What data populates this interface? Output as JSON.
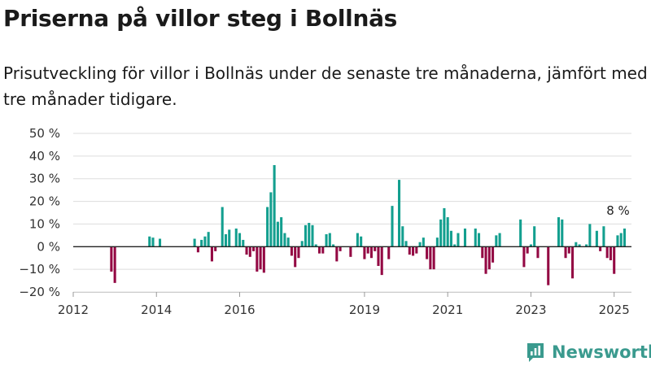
{
  "title": "Priserna på villor steg i Bollnäs",
  "subtitle": "Prisutveckling för villor i Bollnäs under de senaste tre månaderna, jämfört med tre månader tidigare.",
  "brand": {
    "name": "Newsworthy",
    "color": "#3a9a8e",
    "icon": "bar-chart-logo-icon"
  },
  "colors": {
    "positive": "#139f8f",
    "negative": "#930843",
    "zero_line": "#222222",
    "grid": "#dddddd"
  },
  "chart_data": {
    "type": "bar",
    "ylim": [
      -20,
      50
    ],
    "yticks": [
      50,
      40,
      30,
      20,
      10,
      0,
      -10,
      -20
    ],
    "ytick_labels": [
      "50 %",
      "40 %",
      "30 %",
      "20 %",
      "10 %",
      "0 %",
      "−10 %",
      "−20 %"
    ],
    "xlim": [
      "2012-01",
      "2025-06"
    ],
    "xticks": [
      "2012-01",
      "2014-01",
      "2016-01",
      "2019-01",
      "2021-01",
      "2023-01",
      "2025-01"
    ],
    "xtick_labels": [
      "2012",
      "2014",
      "2016",
      "2019",
      "2021",
      "2023",
      "2025"
    ],
    "grid": true,
    "legend": "none",
    "last_value_label": "8 %",
    "series": [
      {
        "points": [
          {
            "x": "2012-12",
            "y": -11
          },
          {
            "x": "2013-01",
            "y": -16
          },
          {
            "x": "2013-11",
            "y": 4.5
          },
          {
            "x": "2013-12",
            "y": 4
          },
          {
            "x": "2014-02",
            "y": 3.5
          },
          {
            "x": "2014-12",
            "y": 3.5
          },
          {
            "x": "2015-01",
            "y": -2.5
          },
          {
            "x": "2015-02",
            "y": 3
          },
          {
            "x": "2015-03",
            "y": 4.5
          },
          {
            "x": "2015-04",
            "y": 6.5
          },
          {
            "x": "2015-05",
            "y": -6.5
          },
          {
            "x": "2015-06",
            "y": -2
          },
          {
            "x": "2015-08",
            "y": 17.5
          },
          {
            "x": "2015-09",
            "y": 5.5
          },
          {
            "x": "2015-10",
            "y": 7.5
          },
          {
            "x": "2015-12",
            "y": 8
          },
          {
            "x": "2016-01",
            "y": 6
          },
          {
            "x": "2016-02",
            "y": 3
          },
          {
            "x": "2016-03",
            "y": -3.5
          },
          {
            "x": "2016-04",
            "y": -4.5
          },
          {
            "x": "2016-05",
            "y": -2
          },
          {
            "x": "2016-06",
            "y": -11
          },
          {
            "x": "2016-07",
            "y": -10
          },
          {
            "x": "2016-08",
            "y": -11.5
          },
          {
            "x": "2016-09",
            "y": 17.5
          },
          {
            "x": "2016-10",
            "y": 24
          },
          {
            "x": "2016-11",
            "y": 36
          },
          {
            "x": "2016-12",
            "y": 11
          },
          {
            "x": "2017-01",
            "y": 13
          },
          {
            "x": "2017-02",
            "y": 6
          },
          {
            "x": "2017-03",
            "y": 4
          },
          {
            "x": "2017-04",
            "y": -4
          },
          {
            "x": "2017-05",
            "y": -9
          },
          {
            "x": "2017-06",
            "y": -5
          },
          {
            "x": "2017-07",
            "y": 2.5
          },
          {
            "x": "2017-08",
            "y": 9.5
          },
          {
            "x": "2017-09",
            "y": 10.5
          },
          {
            "x": "2017-10",
            "y": 9.5
          },
          {
            "x": "2017-11",
            "y": 1
          },
          {
            "x": "2017-12",
            "y": -3
          },
          {
            "x": "2018-01",
            "y": -3
          },
          {
            "x": "2018-02",
            "y": 5.5
          },
          {
            "x": "2018-03",
            "y": 6
          },
          {
            "x": "2018-04",
            "y": 1
          },
          {
            "x": "2018-05",
            "y": -6.5
          },
          {
            "x": "2018-06",
            "y": -2
          },
          {
            "x": "2018-09",
            "y": -4.5
          },
          {
            "x": "2018-11",
            "y": 6
          },
          {
            "x": "2018-12",
            "y": 4.5
          },
          {
            "x": "2019-01",
            "y": -5.5
          },
          {
            "x": "2019-02",
            "y": -3
          },
          {
            "x": "2019-03",
            "y": -5
          },
          {
            "x": "2019-04",
            "y": -2
          },
          {
            "x": "2019-05",
            "y": -8.5
          },
          {
            "x": "2019-06",
            "y": -12.5
          },
          {
            "x": "2019-08",
            "y": -5.5
          },
          {
            "x": "2019-09",
            "y": 18
          },
          {
            "x": "2019-11",
            "y": 29.5
          },
          {
            "x": "2019-12",
            "y": 9
          },
          {
            "x": "2020-01",
            "y": 2.5
          },
          {
            "x": "2020-02",
            "y": -3.5
          },
          {
            "x": "2020-03",
            "y": -4
          },
          {
            "x": "2020-04",
            "y": -3
          },
          {
            "x": "2020-05",
            "y": 2
          },
          {
            "x": "2020-06",
            "y": 4
          },
          {
            "x": "2020-07",
            "y": -5.5
          },
          {
            "x": "2020-08",
            "y": -10
          },
          {
            "x": "2020-09",
            "y": -10
          },
          {
            "x": "2020-10",
            "y": 4
          },
          {
            "x": "2020-11",
            "y": 12
          },
          {
            "x": "2020-12",
            "y": 17
          },
          {
            "x": "2021-01",
            "y": 13
          },
          {
            "x": "2021-02",
            "y": 7
          },
          {
            "x": "2021-03",
            "y": 1
          },
          {
            "x": "2021-04",
            "y": 6
          },
          {
            "x": "2021-06",
            "y": 8
          },
          {
            "x": "2021-09",
            "y": 8
          },
          {
            "x": "2021-10",
            "y": 6
          },
          {
            "x": "2021-11",
            "y": -5
          },
          {
            "x": "2021-12",
            "y": -12
          },
          {
            "x": "2022-01",
            "y": -10
          },
          {
            "x": "2022-02",
            "y": -7
          },
          {
            "x": "2022-03",
            "y": 5
          },
          {
            "x": "2022-04",
            "y": 6
          },
          {
            "x": "2022-10",
            "y": 12
          },
          {
            "x": "2022-11",
            "y": -9
          },
          {
            "x": "2022-12",
            "y": -3
          },
          {
            "x": "2023-01",
            "y": 1
          },
          {
            "x": "2023-02",
            "y": 9
          },
          {
            "x": "2023-03",
            "y": -5
          },
          {
            "x": "2023-06",
            "y": -17
          },
          {
            "x": "2023-09",
            "y": 13
          },
          {
            "x": "2023-10",
            "y": 12
          },
          {
            "x": "2023-11",
            "y": -5
          },
          {
            "x": "2023-12",
            "y": -3
          },
          {
            "x": "2024-01",
            "y": -14
          },
          {
            "x": "2024-02",
            "y": 2
          },
          {
            "x": "2024-03",
            "y": 1
          },
          {
            "x": "2024-05",
            "y": 1
          },
          {
            "x": "2024-06",
            "y": 10
          },
          {
            "x": "2024-08",
            "y": 7
          },
          {
            "x": "2024-09",
            "y": -2
          },
          {
            "x": "2024-10",
            "y": 9
          },
          {
            "x": "2024-11",
            "y": -5
          },
          {
            "x": "2024-12",
            "y": -6
          },
          {
            "x": "2025-01",
            "y": -12
          },
          {
            "x": "2025-02",
            "y": 5
          },
          {
            "x": "2025-03",
            "y": 6
          },
          {
            "x": "2025-04",
            "y": 8
          }
        ]
      }
    ]
  }
}
